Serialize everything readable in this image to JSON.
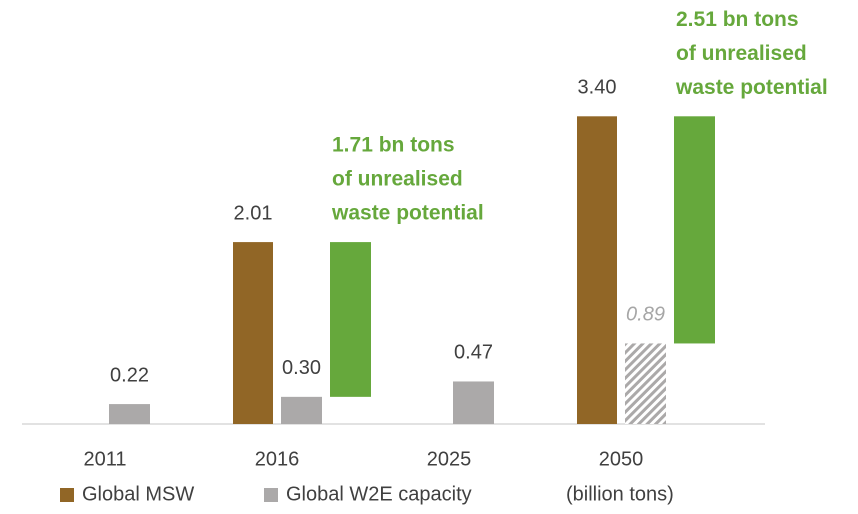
{
  "chart_data": {
    "type": "bar",
    "categories": [
      "2011",
      "2016",
      "2025",
      "2050"
    ],
    "series": [
      {
        "name": "Global MSW",
        "color": "#916626",
        "values": [
          null,
          2.01,
          null,
          3.4
        ],
        "value_labels": [
          null,
          "2.01",
          null,
          "3.40"
        ]
      },
      {
        "name": "Global W2E capacity",
        "color": "#aba9a9",
        "values": [
          0.22,
          0.3,
          0.47,
          0.89
        ],
        "value_labels": [
          "0.22",
          "0.30",
          "0.47",
          "0.89"
        ],
        "projected": [
          false,
          false,
          false,
          true
        ]
      },
      {
        "color": "#66a83c",
        "stack_on": 1,
        "values": [
          null,
          1.71,
          null,
          2.51
        ],
        "value_labels": [
          null,
          [
            "1.71 bn tons",
            "of unrealised",
            "waste potential"
          ],
          null,
          [
            "2.51 bn tons",
            "of unrealised",
            "waste potential"
          ]
        ]
      }
    ],
    "unit_note": "(billion tons)",
    "ylim": [
      0,
      4
    ]
  }
}
